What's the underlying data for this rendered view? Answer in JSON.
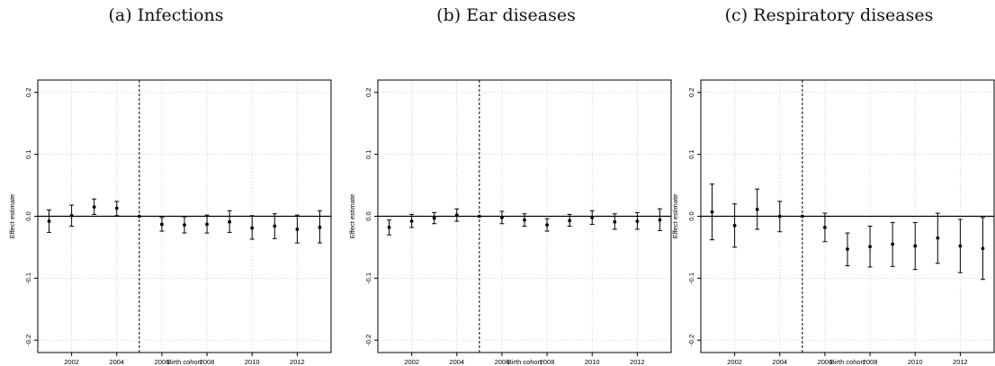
{
  "chart_data": [
    {
      "type": "scatter",
      "title": "(a) Infections",
      "xlabel": "Birth cohort",
      "ylabel": "Effect estimate",
      "xlim": [
        2000.5,
        2013.5
      ],
      "ylim": [
        -0.22,
        0.22
      ],
      "xticks": [
        2002,
        2004,
        2006,
        2008,
        2010,
        2012
      ],
      "yticks": [
        0.2,
        0.1,
        0.0,
        -0.1,
        -0.2
      ],
      "ytick_labels": [
        "0.2",
        "0.1",
        "0.0",
        "-0.1",
        "-0.2"
      ],
      "grid": true,
      "reference_year": 2005,
      "x": [
        2001,
        2002,
        2003,
        2004,
        2005,
        2006,
        2007,
        2008,
        2009,
        2010,
        2011,
        2012,
        2013
      ],
      "estimate": [
        -0.008,
        0.001,
        0.015,
        0.013,
        0.0,
        -0.013,
        -0.014,
        -0.013,
        -0.009,
        -0.019,
        -0.016,
        -0.021,
        -0.018
      ],
      "ci_lower": [
        -0.026,
        -0.016,
        0.003,
        0.001,
        0.0,
        -0.024,
        -0.027,
        -0.027,
        -0.026,
        -0.037,
        -0.036,
        -0.043,
        -0.043
      ],
      "ci_upper": [
        0.01,
        0.018,
        0.028,
        0.024,
        0.0,
        -0.002,
        -0.001,
        0.002,
        0.009,
        0.001,
        0.004,
        0.002,
        0.009
      ]
    },
    {
      "type": "scatter",
      "title": "(b) Ear diseases",
      "xlabel": "Birth cohort",
      "ylabel": "Effect estimate",
      "xlim": [
        2000.5,
        2013.5
      ],
      "ylim": [
        -0.22,
        0.22
      ],
      "xticks": [
        2002,
        2004,
        2006,
        2008,
        2010,
        2012
      ],
      "yticks": [
        0.2,
        0.1,
        0.0,
        -0.1,
        -0.2
      ],
      "ytick_labels": [
        "0.2",
        "0.1",
        "0.0",
        "-0.1",
        "-0.2"
      ],
      "grid": true,
      "reference_year": 2005,
      "x": [
        2001,
        2002,
        2003,
        2004,
        2005,
        2006,
        2007,
        2008,
        2009,
        2010,
        2011,
        2012,
        2013
      ],
      "estimate": [
        -0.018,
        -0.008,
        -0.003,
        0.002,
        0.0,
        -0.002,
        -0.006,
        -0.014,
        -0.007,
        -0.002,
        -0.009,
        -0.008,
        -0.006
      ],
      "ci_lower": [
        -0.03,
        -0.018,
        -0.012,
        -0.008,
        0.0,
        -0.012,
        -0.016,
        -0.024,
        -0.016,
        -0.013,
        -0.021,
        -0.021,
        -0.023
      ],
      "ci_upper": [
        -0.006,
        0.003,
        0.006,
        0.012,
        0.0,
        0.008,
        0.004,
        -0.004,
        0.003,
        0.009,
        0.004,
        0.006,
        0.012
      ]
    },
    {
      "type": "scatter",
      "title": "(c) Respiratory diseases",
      "xlabel": "Birth cohort",
      "ylabel": "Effect estimate",
      "xlim": [
        2000.5,
        2013.5
      ],
      "ylim": [
        -0.22,
        0.22
      ],
      "xticks": [
        2002,
        2004,
        2006,
        2008,
        2010,
        2012
      ],
      "yticks": [
        0.2,
        0.1,
        0.0,
        -0.1,
        -0.2
      ],
      "ytick_labels": [
        "0.2",
        "0.1",
        "0.0",
        "-0.1",
        "-0.2"
      ],
      "grid": true,
      "reference_year": 2005,
      "x": [
        2001,
        2002,
        2003,
        2004,
        2005,
        2006,
        2007,
        2008,
        2009,
        2010,
        2011,
        2012,
        2013
      ],
      "estimate": [
        0.007,
        -0.015,
        0.011,
        0.0,
        0.0,
        -0.018,
        -0.053,
        -0.049,
        -0.045,
        -0.048,
        -0.035,
        -0.048,
        -0.052
      ],
      "ci_lower": [
        -0.038,
        -0.05,
        -0.021,
        -0.025,
        0.0,
        -0.041,
        -0.08,
        -0.082,
        -0.081,
        -0.086,
        -0.076,
        -0.091,
        -0.102
      ],
      "ci_upper": [
        0.052,
        0.02,
        0.044,
        0.024,
        0.0,
        0.005,
        -0.027,
        -0.016,
        -0.01,
        -0.01,
        0.005,
        -0.005,
        -0.002
      ]
    }
  ]
}
